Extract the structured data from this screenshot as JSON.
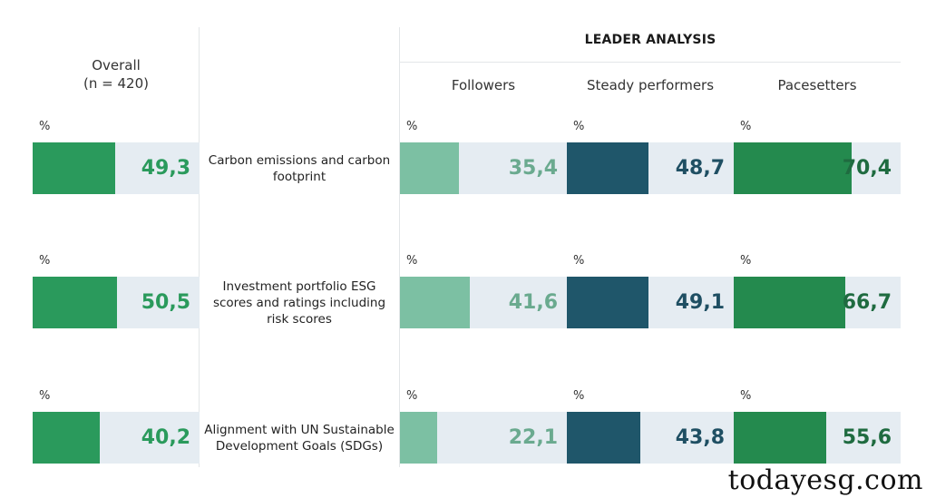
{
  "chart_data": {
    "type": "bar",
    "overall": {
      "title": "Overall",
      "subtitle": "(n = 420)"
    },
    "leader_title": "LEADER ANALYSIS",
    "unit_label": "%",
    "columns": [
      {
        "key": "overall",
        "name": "Overall"
      },
      {
        "key": "followers",
        "name": "Followers"
      },
      {
        "key": "steady",
        "name": "Steady performers"
      },
      {
        "key": "pacesetters",
        "name": "Pacesetters"
      }
    ],
    "categories": [
      "Carbon emissions and carbon footprint",
      "Investment portfolio ESG scores and ratings including risk scores",
      "Alignment with UN Sustainable Development Goals (SDGs)"
    ],
    "series": [
      {
        "name": "Overall",
        "values": [
          "49,3",
          "50,5",
          "40,2"
        ],
        "numeric": [
          49.3,
          50.5,
          40.2
        ],
        "color": "#2a9a5c",
        "text_color": "#2a9a5c"
      },
      {
        "name": "Followers",
        "values": [
          "35,4",
          "41,6",
          "22,1"
        ],
        "numeric": [
          35.4,
          41.6,
          22.1
        ],
        "color": "#7cc0a3",
        "text_color": "#6aaa8f"
      },
      {
        "name": "Steady performers",
        "values": [
          "48,7",
          "49,1",
          "43,8"
        ],
        "numeric": [
          48.7,
          49.1,
          43.8
        ],
        "color": "#1f566a",
        "text_color": "#1f4f63"
      },
      {
        "name": "Pacesetters",
        "values": [
          "70,4",
          "66,7",
          "55,6"
        ],
        "numeric": [
          70.4,
          66.7,
          55.6
        ],
        "color": "#248a4e",
        "text_color": "#1f6b40"
      }
    ],
    "ylim": [
      0,
      100
    ]
  },
  "watermark": "todayesg.com"
}
